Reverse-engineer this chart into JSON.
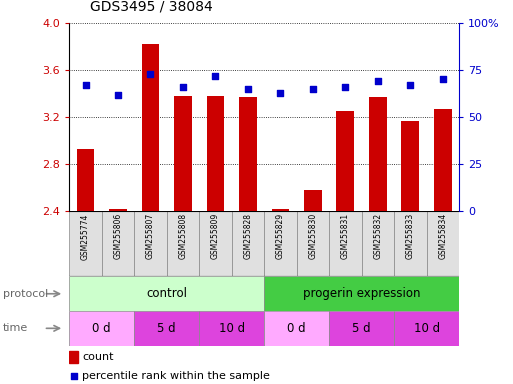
{
  "title": "GDS3495 / 38084",
  "samples": [
    "GSM255774",
    "GSM255806",
    "GSM255807",
    "GSM255808",
    "GSM255809",
    "GSM255828",
    "GSM255829",
    "GSM255830",
    "GSM255831",
    "GSM255832",
    "GSM255833",
    "GSM255834"
  ],
  "bar_values": [
    2.93,
    2.42,
    3.82,
    3.38,
    3.38,
    3.37,
    2.42,
    2.58,
    3.25,
    3.37,
    3.17,
    3.27
  ],
  "dot_values": [
    67,
    62,
    73,
    66,
    72,
    65,
    63,
    65,
    66,
    69,
    67,
    70
  ],
  "ylim": [
    2.4,
    4.0
  ],
  "y2lim": [
    0,
    100
  ],
  "yticks": [
    2.4,
    2.8,
    3.2,
    3.6,
    4.0
  ],
  "y2ticks": [
    0,
    25,
    50,
    75,
    100
  ],
  "y2ticklabels": [
    "0",
    "25",
    "50",
    "75",
    "100%"
  ],
  "bar_color": "#cc0000",
  "dot_color": "#0000cc",
  "protocol_control_color": "#ccffcc",
  "protocol_progerin_color": "#44cc44",
  "time_0d_color": "#ffaaff",
  "time_5d_color": "#dd44dd",
  "time_10d_color": "#dd44dd",
  "legend_count_label": "count",
  "legend_pct_label": "percentile rank within the sample",
  "time_groups": [
    {
      "label": "0 d",
      "start": 0,
      "end": 2,
      "color": "#ffaaff"
    },
    {
      "label": "5 d",
      "start": 2,
      "end": 4,
      "color": "#dd44dd"
    },
    {
      "label": "10 d",
      "start": 4,
      "end": 6,
      "color": "#dd44dd"
    },
    {
      "label": "0 d",
      "start": 6,
      "end": 8,
      "color": "#ffaaff"
    },
    {
      "label": "5 d",
      "start": 8,
      "end": 10,
      "color": "#dd44dd"
    },
    {
      "label": "10 d",
      "start": 10,
      "end": 12,
      "color": "#dd44dd"
    }
  ]
}
